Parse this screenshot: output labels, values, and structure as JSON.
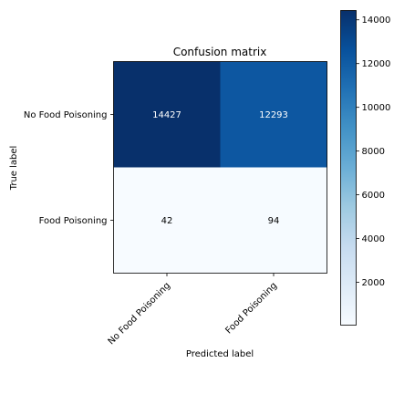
{
  "chart_data": {
    "type": "heatmap",
    "title": "Confusion matrix",
    "xlabel": "Predicted label",
    "ylabel": "True label",
    "x_categories": [
      "No Food Poisoning",
      "Food Poisoning"
    ],
    "y_categories": [
      "No Food Poisoning",
      "Food Poisoning"
    ],
    "values": [
      [
        14427,
        12293
      ],
      [
        42,
        94
      ]
    ],
    "colormap": "Blues",
    "color_range": [
      42,
      14427
    ],
    "colorbar_ticks": [
      "2000",
      "4000",
      "6000",
      "8000",
      "10000",
      "12000",
      "14000"
    ],
    "grid": false
  }
}
